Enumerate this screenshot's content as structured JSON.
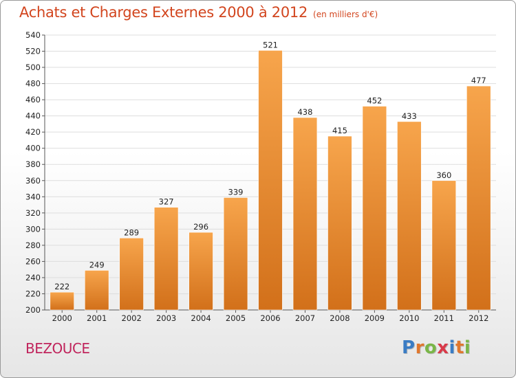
{
  "title": "Achats et Charges Externes 2000 à 2012",
  "subtitle": "(en milliers d'€)",
  "commune": "BEZOUCE",
  "logo": {
    "text": "Proxiti",
    "letters": [
      {
        "char": "P",
        "color": "#3a7cc4"
      },
      {
        "char": "r",
        "color": "#e0772d"
      },
      {
        "char": "o",
        "color": "#7ab648"
      },
      {
        "char": "x",
        "color": "#d93a49"
      },
      {
        "char": "i",
        "color": "#3a7cc4"
      },
      {
        "char": "t",
        "color": "#e0772d"
      },
      {
        "char": "i",
        "color": "#7ab648"
      }
    ]
  },
  "colors": {
    "title": "#d2451e",
    "commune": "#c0245c",
    "bar_light": "#f7a54c",
    "bar_dark": "#d2701a",
    "grid": "#dddddd",
    "axis": "#555555"
  },
  "chart_data": {
    "type": "bar",
    "categories": [
      "2000",
      "2001",
      "2002",
      "2003",
      "2004",
      "2005",
      "2006",
      "2007",
      "2008",
      "2009",
      "2010",
      "2011",
      "2012"
    ],
    "values": [
      222,
      249,
      289,
      327,
      296,
      339,
      521,
      438,
      415,
      452,
      433,
      360,
      477
    ],
    "value_labels": [
      "222",
      "249",
      "289",
      "327",
      "296",
      "339",
      "521",
      "438",
      "415",
      "452",
      "433",
      "360",
      "477"
    ],
    "ylim": [
      200,
      540
    ],
    "yticks": [
      200,
      220,
      240,
      260,
      280,
      300,
      320,
      340,
      360,
      380,
      400,
      420,
      440,
      460,
      480,
      500,
      520,
      540
    ],
    "grid": true,
    "xlabel": "",
    "ylabel": ""
  }
}
